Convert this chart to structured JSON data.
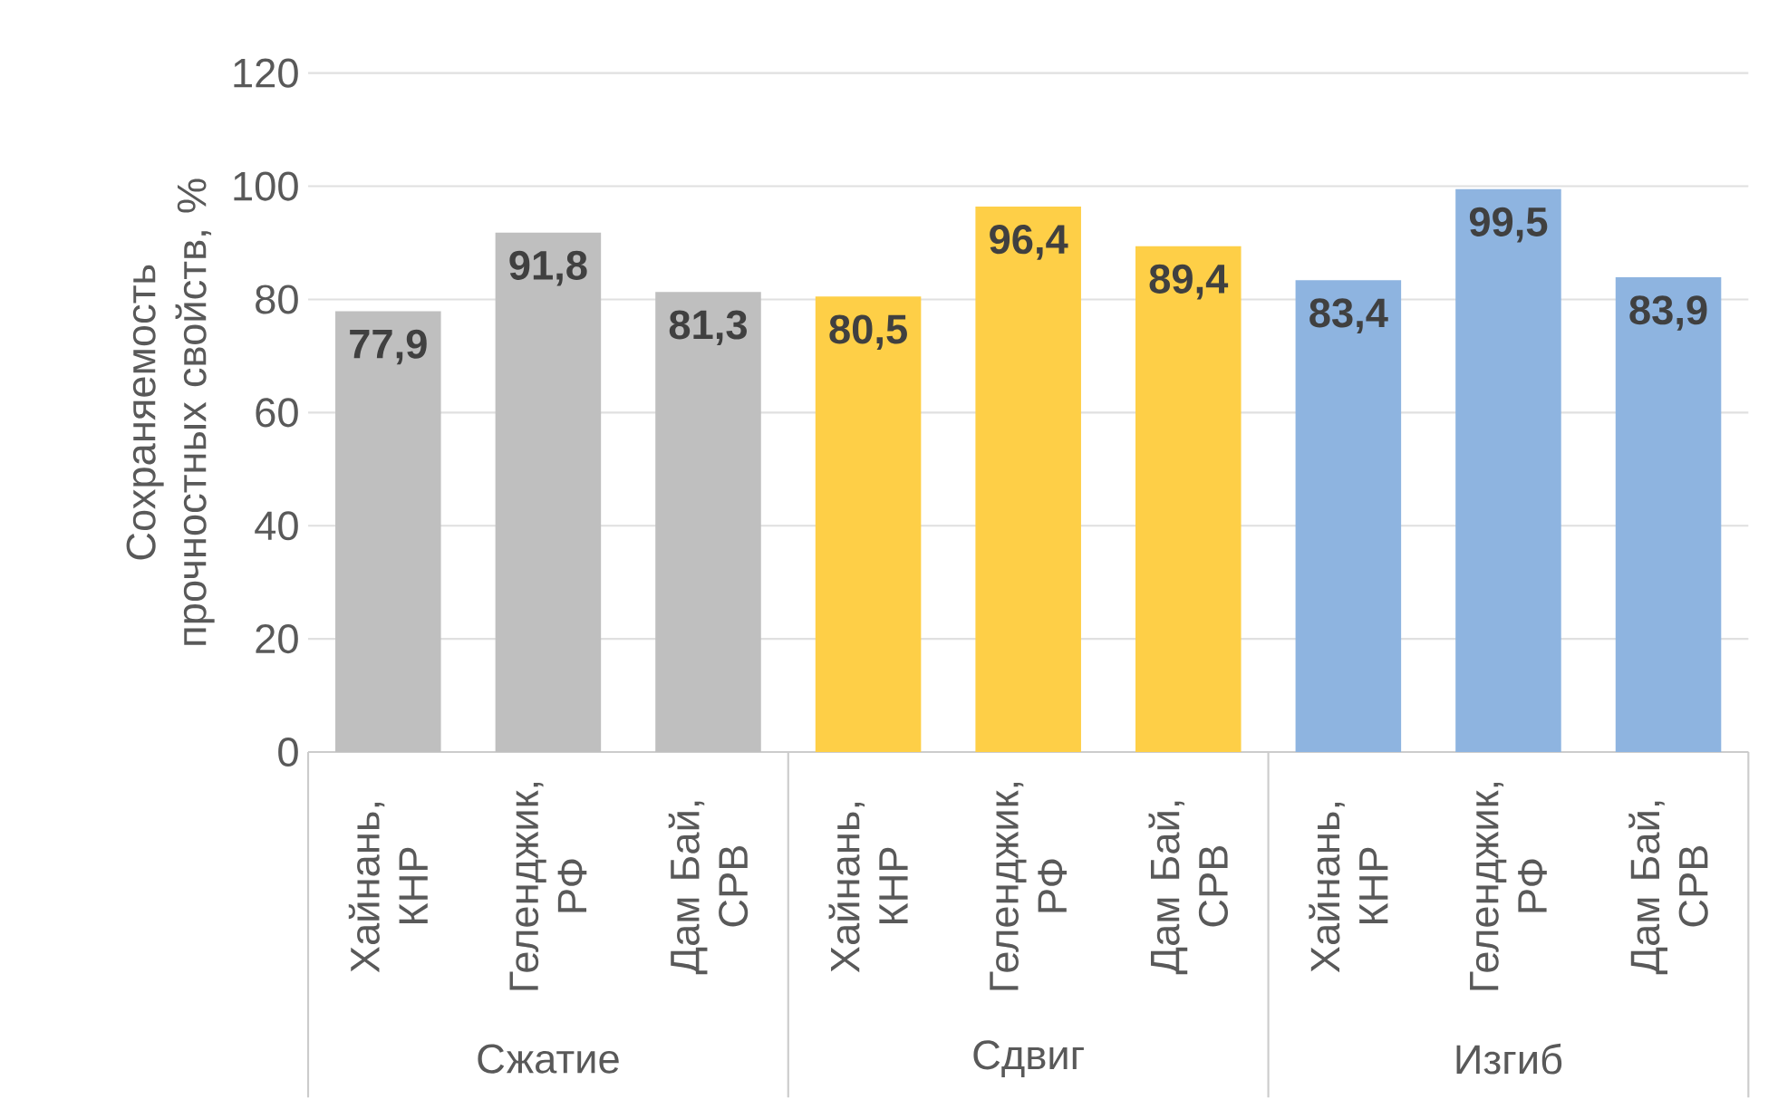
{
  "chart_data": {
    "type": "bar",
    "ylabel": "Сохраняемость прочностных свойств, %",
    "categories": [
      "Хайнань, КНР",
      "Геленджик, РФ",
      "Дам Бай, СРВ",
      "Хайнань, КНР",
      "Геленджик, РФ",
      "Дам Бай, СРВ",
      "Хайнань, КНР",
      "Геленджик, РФ",
      "Дам Бай, СРВ"
    ],
    "values": [
      77.9,
      91.8,
      81.3,
      80.5,
      96.4,
      89.4,
      83.4,
      99.5,
      83.9
    ],
    "value_labels": [
      "77,9",
      "91,8",
      "81,3",
      "80,5",
      "96,4",
      "89,4",
      "83,4",
      "99,5",
      "83,9"
    ],
    "colors": [
      "#bfbfbf",
      "#bfbfbf",
      "#bfbfbf",
      "#fecf47",
      "#fecf47",
      "#fecf47",
      "#8eb4e0",
      "#8eb4e0",
      "#8eb4e0"
    ],
    "annotations": [
      "Сжатие",
      "Сдвиг",
      "Изгиб"
    ],
    "ylim": [
      0,
      120
    ],
    "yticks": [
      0,
      20,
      40,
      60,
      80,
      100,
      120
    ],
    "grid": "y"
  }
}
